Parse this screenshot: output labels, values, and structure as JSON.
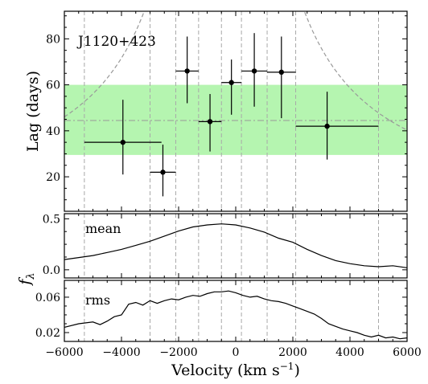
{
  "chart_data": [
    {
      "panel": "lag",
      "type": "scatter",
      "title": "J1120+423",
      "ylabel": "Lag (days)",
      "xlim": [
        -6000,
        6000
      ],
      "ylim": [
        5,
        92
      ],
      "yticks": [
        20,
        40,
        60,
        80
      ],
      "band": {
        "y_low": 29.5,
        "y_high": 60,
        "color": "#b5f5b0"
      },
      "hline": {
        "y": 44.5,
        "style": "dash-dot",
        "color": "#999999"
      },
      "vlines": [
        -5300,
        -3000,
        -2100,
        -1300,
        -500,
        200,
        1100,
        2100,
        5000
      ],
      "envelope": {
        "x0": -400,
        "k": 860,
        "color": "#999999"
      },
      "points": [
        {
          "x": -3950,
          "xerr_low": 1350,
          "xerr_high": 1350,
          "y": 35,
          "yerr_low": 14,
          "yerr_high": 18.5
        },
        {
          "x": -2550,
          "xerr_low": 450,
          "xerr_high": 450,
          "y": 22,
          "yerr_low": 10.5,
          "yerr_high": 12
        },
        {
          "x": -1700,
          "xerr_low": 400,
          "xerr_high": 400,
          "y": 66,
          "yerr_low": 14,
          "yerr_high": 15
        },
        {
          "x": -900,
          "xerr_low": 400,
          "xerr_high": 400,
          "y": 44,
          "yerr_low": 13,
          "yerr_high": 12
        },
        {
          "x": -150,
          "xerr_low": 350,
          "xerr_high": 350,
          "y": 61,
          "yerr_low": 14,
          "yerr_high": 10
        },
        {
          "x": 650,
          "xerr_low": 450,
          "xerr_high": 450,
          "y": 66,
          "yerr_low": 15.5,
          "yerr_high": 16.5
        },
        {
          "x": 1600,
          "xerr_low": 500,
          "xerr_high": 500,
          "y": 65.5,
          "yerr_low": 20,
          "yerr_high": 15.5
        },
        {
          "x": 3200,
          "xerr_low": 1100,
          "xerr_high": 1800,
          "y": 42,
          "yerr_low": 14.5,
          "yerr_high": 15
        }
      ]
    },
    {
      "panel": "mean",
      "type": "line",
      "label": "mean",
      "xlim": [
        -6000,
        6000
      ],
      "ylim": [
        -0.08,
        0.55
      ],
      "yticks": [
        0.0,
        0.5
      ],
      "ytick_labels": [
        "0.0",
        "0.5"
      ],
      "x": [
        -6000,
        -5500,
        -5000,
        -4500,
        -4000,
        -3500,
        -3000,
        -2500,
        -2000,
        -1500,
        -1000,
        -500,
        0,
        500,
        1000,
        1500,
        2000,
        2500,
        3000,
        3500,
        4000,
        4500,
        5000,
        5500,
        6000
      ],
      "y": [
        0.1,
        0.12,
        0.14,
        0.17,
        0.2,
        0.24,
        0.28,
        0.33,
        0.38,
        0.42,
        0.44,
        0.45,
        0.44,
        0.41,
        0.37,
        0.31,
        0.27,
        0.2,
        0.14,
        0.09,
        0.06,
        0.04,
        0.03,
        0.04,
        0.02
      ]
    },
    {
      "panel": "rms",
      "type": "line",
      "label": "rms",
      "xlim": [
        -6000,
        6000
      ],
      "ylim": [
        0.01,
        0.079
      ],
      "yticks": [
        0.02,
        0.06
      ],
      "ytick_labels": [
        "0.02",
        "0.06"
      ],
      "x": [
        -6000,
        -5500,
        -5000,
        -4750,
        -4500,
        -4250,
        -4000,
        -3750,
        -3500,
        -3250,
        -3000,
        -2750,
        -2500,
        -2250,
        -2000,
        -1750,
        -1500,
        -1250,
        -1000,
        -750,
        -500,
        -250,
        0,
        250,
        500,
        750,
        1000,
        1250,
        1500,
        1750,
        2000,
        2250,
        2500,
        2750,
        3000,
        3250,
        3500,
        3750,
        4000,
        4250,
        4500,
        4750,
        5000,
        5250,
        5500,
        5750,
        6000
      ],
      "y": [
        0.026,
        0.03,
        0.032,
        0.029,
        0.033,
        0.038,
        0.04,
        0.052,
        0.054,
        0.051,
        0.056,
        0.053,
        0.056,
        0.058,
        0.057,
        0.06,
        0.062,
        0.061,
        0.064,
        0.066,
        0.066,
        0.067,
        0.065,
        0.062,
        0.06,
        0.061,
        0.058,
        0.056,
        0.055,
        0.053,
        0.05,
        0.047,
        0.044,
        0.041,
        0.036,
        0.03,
        0.027,
        0.024,
        0.022,
        0.02,
        0.017,
        0.015,
        0.017,
        0.014,
        0.015,
        0.013,
        0.014
      ]
    }
  ],
  "shared": {
    "xlabel": "Velocity (km s",
    "xlabel_exp": "−1",
    "xlabel_close": ")",
    "ylabel_flux": "f",
    "ylabel_flux_sub": "λ",
    "xticks": [
      -6000,
      -4000,
      -2000,
      0,
      2000,
      4000,
      6000
    ],
    "xtick_labels": [
      "−6000",
      "−4000",
      "−2000",
      "0",
      "2000",
      "4000",
      "6000"
    ]
  }
}
